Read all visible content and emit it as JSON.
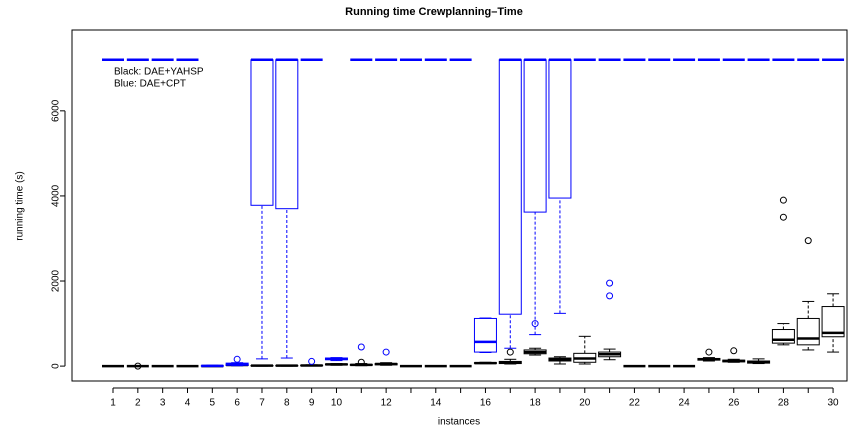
{
  "chart_data": {
    "type": "boxplot",
    "title": "Running time Crewplanning–Time",
    "x_label": "instances",
    "y_label": "running time (s)",
    "categories": [
      "1",
      "2",
      "3",
      "4",
      "5",
      "6",
      "7",
      "8",
      "9",
      "10",
      null,
      "12",
      null,
      "14",
      null,
      "16",
      null,
      "18",
      null,
      "20",
      null,
      "22",
      null,
      "24",
      null,
      "26",
      null,
      "28",
      null,
      "30"
    ],
    "ylim": [
      -350,
      7900
    ],
    "yticks": [
      0,
      2000,
      4000,
      6000
    ],
    "series": [
      {
        "name": "Black: DAE+YAHSP",
        "color": "#000000",
        "min": [
          0,
          0,
          0,
          0,
          0,
          10,
          0,
          0,
          5,
          20,
          10,
          20,
          0,
          0,
          0,
          60,
          50,
          260,
          50,
          50,
          150,
          0,
          0,
          0,
          120,
          90,
          60,
          500,
          380,
          330
        ],
        "q1": [
          0,
          0,
          0,
          0,
          0,
          15,
          5,
          5,
          10,
          30,
          20,
          30,
          0,
          0,
          0,
          65,
          60,
          290,
          120,
          90,
          220,
          0,
          0,
          0,
          140,
          100,
          70,
          540,
          500,
          690
        ],
        "median": [
          0,
          0,
          0,
          0,
          0,
          25,
          10,
          10,
          15,
          40,
          30,
          50,
          0,
          0,
          0,
          70,
          80,
          330,
          150,
          180,
          280,
          0,
          0,
          0,
          160,
          120,
          90,
          620,
          650,
          780
        ],
        "q3": [
          0,
          0,
          0,
          0,
          0,
          35,
          15,
          15,
          20,
          50,
          40,
          60,
          0,
          0,
          0,
          80,
          110,
          380,
          190,
          300,
          330,
          0,
          0,
          0,
          180,
          140,
          120,
          860,
          1120,
          1400
        ],
        "max": [
          0,
          0,
          0,
          0,
          0,
          50,
          20,
          20,
          30,
          60,
          60,
          80,
          0,
          0,
          0,
          90,
          160,
          420,
          220,
          700,
          400,
          0,
          0,
          0,
          200,
          160,
          170,
          1000,
          1520,
          1700
        ],
        "outliers": [
          [],
          [
            0
          ],
          [],
          [],
          [],
          [],
          [],
          [],
          [],
          [],
          [
            90
          ],
          [],
          [],
          [],
          [],
          [],
          [
            330
          ],
          [],
          [],
          [],
          [],
          [],
          [],
          [],
          [
            330
          ],
          [
            360
          ],
          [],
          [
            3500,
            3900
          ],
          [
            2950
          ],
          []
        ]
      },
      {
        "name": "Blue: DAE+CPT",
        "color": "#0000ff",
        "min": [
          7200,
          7200,
          7200,
          7200,
          0,
          10,
          170,
          190,
          7200,
          130,
          7200,
          7200,
          7200,
          7200,
          7200,
          320,
          420,
          740,
          1240,
          7200,
          7200,
          7200,
          7200,
          7200,
          7200,
          7200,
          7200,
          7200,
          7200,
          7200
        ],
        "q1": [
          7200,
          7200,
          7200,
          7200,
          0,
          20,
          3780,
          3700,
          7200,
          150,
          7200,
          7200,
          7200,
          7200,
          7200,
          330,
          1220,
          3620,
          3950,
          7200,
          7200,
          7200,
          7200,
          7200,
          7200,
          7200,
          7200,
          7200,
          7200,
          7200
        ],
        "median": [
          7200,
          7200,
          7200,
          7200,
          5,
          40,
          7200,
          7200,
          7200,
          170,
          7200,
          7200,
          7200,
          7200,
          7200,
          570,
          7200,
          7200,
          7200,
          7200,
          7200,
          7200,
          7200,
          7200,
          7200,
          7200,
          7200,
          7200,
          7200,
          7200
        ],
        "q3": [
          7200,
          7200,
          7200,
          7200,
          10,
          70,
          7200,
          7200,
          7200,
          190,
          7200,
          7200,
          7200,
          7200,
          7200,
          1120,
          7200,
          7200,
          7200,
          7200,
          7200,
          7200,
          7200,
          7200,
          7200,
          7200,
          7200,
          7200,
          7200,
          7200
        ],
        "max": [
          7200,
          7200,
          7200,
          7200,
          20,
          80,
          7200,
          7200,
          7200,
          200,
          7200,
          7200,
          7200,
          7200,
          7200,
          1130,
          7200,
          7200,
          7200,
          7200,
          7200,
          7200,
          7200,
          7200,
          7200,
          7200,
          7200,
          7200,
          7200,
          7200
        ],
        "outliers": [
          [],
          [],
          [],
          [],
          [],
          [
            160
          ],
          [],
          [],
          [
            110
          ],
          [],
          [
            450
          ],
          [
            330
          ],
          [],
          [],
          [],
          [],
          [],
          [
            1000
          ],
          [],
          [],
          [
            1650,
            1950
          ],
          [],
          [],
          [],
          [],
          [],
          [],
          [],
          [],
          []
        ]
      }
    ]
  }
}
